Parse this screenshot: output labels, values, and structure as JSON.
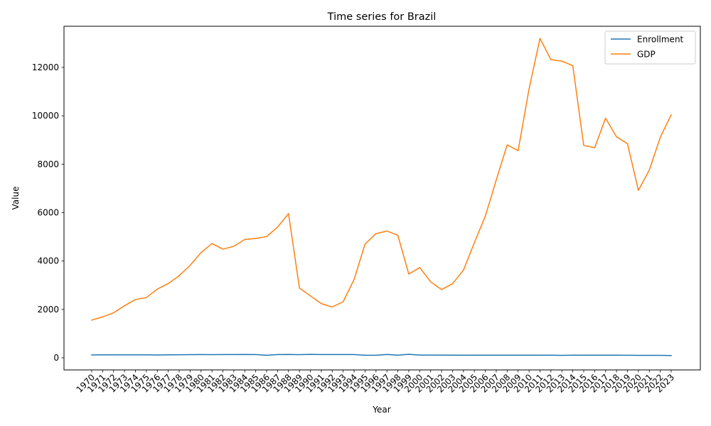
{
  "chart_data": {
    "type": "line",
    "title": "Time series for Brazil",
    "xlabel": "Year",
    "ylabel": "Value",
    "ylim": [
      -500,
      13700
    ],
    "yticks": [
      0,
      2000,
      4000,
      6000,
      8000,
      10000,
      12000
    ],
    "grid": false,
    "legend_position": "top-right",
    "x": [
      "1970",
      "1971",
      "1972",
      "1973",
      "1974",
      "1975",
      "1976",
      "1977",
      "1978",
      "1979",
      "1980",
      "1981",
      "1982",
      "1983",
      "1984",
      "1985",
      "1986",
      "1987",
      "1988",
      "1989",
      "1990",
      "1991",
      "1992",
      "1993",
      "1994",
      "1995",
      "1996",
      "1997",
      "1998",
      "1999",
      "2000",
      "2001",
      "2002",
      "2003",
      "2004",
      "2005",
      "2006",
      "2007",
      "2008",
      "2009",
      "2010",
      "2011",
      "2012",
      "2013",
      "2014",
      "2015",
      "2016",
      "2017",
      "2018",
      "2019",
      "2020",
      "2021",
      "2022",
      "2023"
    ],
    "series": [
      {
        "name": "Enrollment",
        "color": "#1f77b4",
        "values": [
          120,
          125,
          125,
          125,
          125,
          122,
          118,
          122,
          126,
          132,
          133,
          132,
          135,
          133,
          138,
          133,
          105,
          133,
          140,
          132,
          143,
          133,
          133,
          133,
          136,
          105,
          105,
          140,
          110,
          146,
          112,
          112,
          112,
          110,
          110,
          110,
          108,
          110,
          110,
          110,
          110,
          110,
          107,
          102,
          110,
          110,
          110,
          110,
          108,
          105,
          102,
          102,
          100,
          95
        ]
      },
      {
        "name": "GDP",
        "color": "#ff7f0e",
        "values": [
          1560,
          1690,
          1860,
          2150,
          2410,
          2490,
          2840,
          3070,
          3390,
          3820,
          4350,
          4720,
          4490,
          4610,
          4890,
          4930,
          5010,
          5400,
          5960,
          2880,
          2560,
          2240,
          2100,
          2320,
          3240,
          4700,
          5130,
          5240,
          5060,
          3460,
          3730,
          3140,
          2820,
          3060,
          3620,
          4760,
          5850,
          7350,
          8800,
          8560,
          11110,
          13200,
          12320,
          12260,
          12070,
          8780,
          8680,
          9900,
          9130,
          8850,
          6920,
          7760,
          9110,
          10040
        ]
      }
    ]
  }
}
